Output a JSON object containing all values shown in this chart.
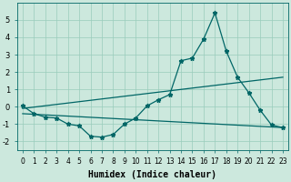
{
  "xlabel": "Humidex (Indice chaleur)",
  "background_color": "#cce8dd",
  "grid_color": "#99ccbb",
  "line_color": "#006666",
  "x_values": [
    0,
    1,
    2,
    3,
    4,
    5,
    6,
    7,
    8,
    9,
    10,
    11,
    12,
    13,
    14,
    15,
    16,
    17,
    18,
    19,
    20,
    21,
    22,
    23
  ],
  "line1": [
    0.05,
    -0.4,
    -0.6,
    -0.65,
    -1.0,
    -1.1,
    -1.7,
    -1.75,
    -1.6,
    -1.0,
    -0.65,
    0.05,
    0.4,
    0.7,
    2.65,
    2.8,
    3.9,
    5.4,
    3.2,
    1.7,
    0.8,
    -0.2,
    -1.05,
    -1.2
  ],
  "trend1_x": [
    0,
    23
  ],
  "trend1_y": [
    -0.1,
    1.7
  ],
  "trend2_x": [
    0,
    23
  ],
  "trend2_y": [
    -0.4,
    -1.2
  ],
  "ylim": [
    -2.5,
    6.0
  ],
  "xlim": [
    -0.5,
    23.5
  ],
  "yticks": [
    -2,
    -1,
    0,
    1,
    2,
    3,
    4,
    5
  ],
  "xticks": [
    0,
    1,
    2,
    3,
    4,
    5,
    6,
    7,
    8,
    9,
    10,
    11,
    12,
    13,
    14,
    15,
    16,
    17,
    18,
    19,
    20,
    21,
    22,
    23
  ],
  "xlabel_fontsize": 7,
  "tick_fontsize": 5.5,
  "ytick_fontsize": 6
}
